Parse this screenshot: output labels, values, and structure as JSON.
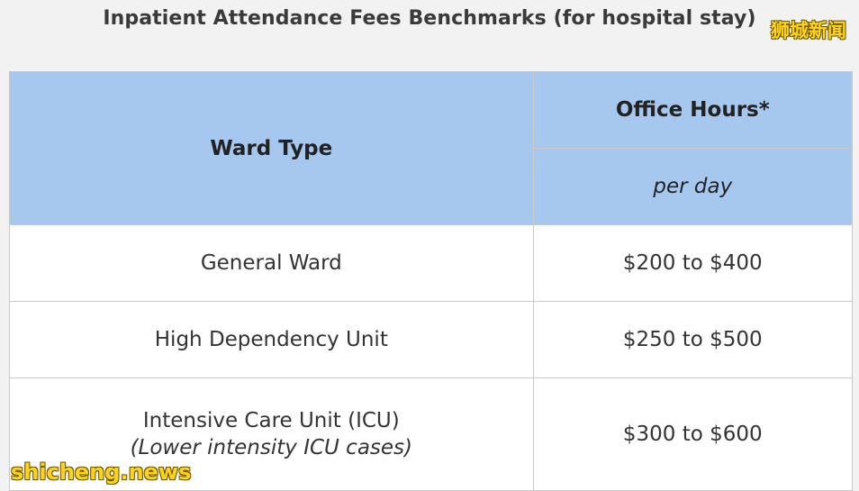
{
  "title": "Inpatient Attendance Fees Benchmarks (for hospital stay)",
  "watermarks": {
    "top": "狮城新闻",
    "bottom": "shicheng.news"
  },
  "table": {
    "header": {
      "ward_type": "Ward Type",
      "office_hours": "Office Hours*",
      "per_day": "per day"
    },
    "rows": [
      {
        "ward": "General Ward",
        "note": "",
        "fee": "$200 to $400"
      },
      {
        "ward": "High Dependency Unit",
        "note": "",
        "fee": "$250 to $500"
      },
      {
        "ward": "Intensive Care Unit (ICU)",
        "note": "(Lower intensity ICU cases)",
        "fee": "$300 to $600"
      }
    ]
  },
  "colors": {
    "header_bg": "#a6c8ef",
    "page_bg": "#f2f2f2",
    "watermark": "#ffd21f"
  }
}
